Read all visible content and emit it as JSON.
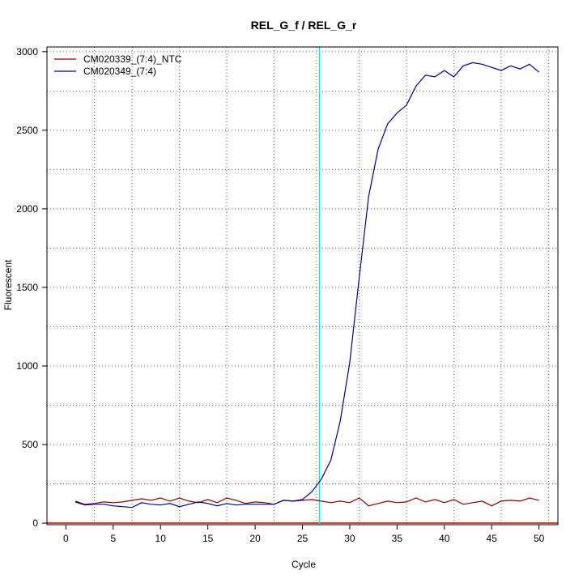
{
  "chart_data": {
    "type": "line",
    "title": "REL_G_f / REL_G_r",
    "xlabel": "Cycle",
    "ylabel": "Fluorescent",
    "xlim": [
      -2,
      52
    ],
    "ylim": [
      -10,
      3030
    ],
    "x_ticks": [
      0,
      5,
      10,
      15,
      20,
      25,
      30,
      35,
      40,
      45,
      50
    ],
    "y_ticks": [
      0,
      500,
      1000,
      1500,
      2000,
      2500,
      3000
    ],
    "x_grid": [
      3,
      7,
      12,
      17,
      22,
      26.5,
      31,
      36,
      41,
      46,
      51
    ],
    "y_grid": [
      0,
      250,
      500,
      750,
      1000,
      1250,
      1500,
      1750,
      2000,
      2250,
      2500,
      2750,
      3000
    ],
    "grid": true,
    "legend_position": "top-left",
    "threshold_cycle": 26.8,
    "threshold_color": "#00e5ee",
    "baseline_color": "#cc0000",
    "series": [
      {
        "name": "CM020339_(7:4)_NTC",
        "color": "#8b0000",
        "x": [
          1,
          2,
          3,
          4,
          5,
          6,
          7,
          8,
          9,
          10,
          11,
          12,
          13,
          14,
          15,
          16,
          17,
          18,
          19,
          20,
          21,
          22,
          23,
          24,
          25,
          26,
          27,
          28,
          29,
          30,
          31,
          32,
          33,
          34,
          35,
          36,
          37,
          38,
          39,
          40,
          41,
          42,
          43,
          44,
          45,
          46,
          47,
          48,
          49,
          50
        ],
        "values": [
          140,
          120,
          125,
          135,
          130,
          135,
          145,
          155,
          145,
          160,
          140,
          160,
          140,
          130,
          150,
          130,
          160,
          145,
          125,
          135,
          130,
          120,
          145,
          140,
          145,
          150,
          140,
          130,
          140,
          130,
          160,
          110,
          125,
          140,
          130,
          135,
          160,
          135,
          150,
          130,
          150,
          120,
          130,
          140,
          110,
          140,
          145,
          140,
          160,
          145
        ]
      },
      {
        "name": "CM020349_(7:4)",
        "color": "#00008b",
        "x": [
          1,
          2,
          3,
          4,
          5,
          6,
          7,
          8,
          9,
          10,
          11,
          12,
          13,
          14,
          15,
          16,
          17,
          18,
          19,
          20,
          21,
          22,
          23,
          24,
          25,
          26,
          27,
          28,
          29,
          30,
          31,
          32,
          33,
          34,
          35,
          36,
          37,
          38,
          39,
          40,
          41,
          42,
          43,
          44,
          45,
          46,
          47,
          48,
          49,
          50
        ],
        "values": [
          135,
          115,
          120,
          120,
          110,
          105,
          100,
          130,
          120,
          115,
          125,
          105,
          120,
          135,
          125,
          110,
          125,
          115,
          120,
          120,
          120,
          120,
          145,
          140,
          150,
          200,
          280,
          400,
          650,
          1020,
          1560,
          2080,
          2380,
          2540,
          2610,
          2660,
          2780,
          2850,
          2840,
          2880,
          2840,
          2910,
          2930,
          2920,
          2900,
          2880,
          2910,
          2890,
          2920,
          2870
        ]
      }
    ]
  }
}
